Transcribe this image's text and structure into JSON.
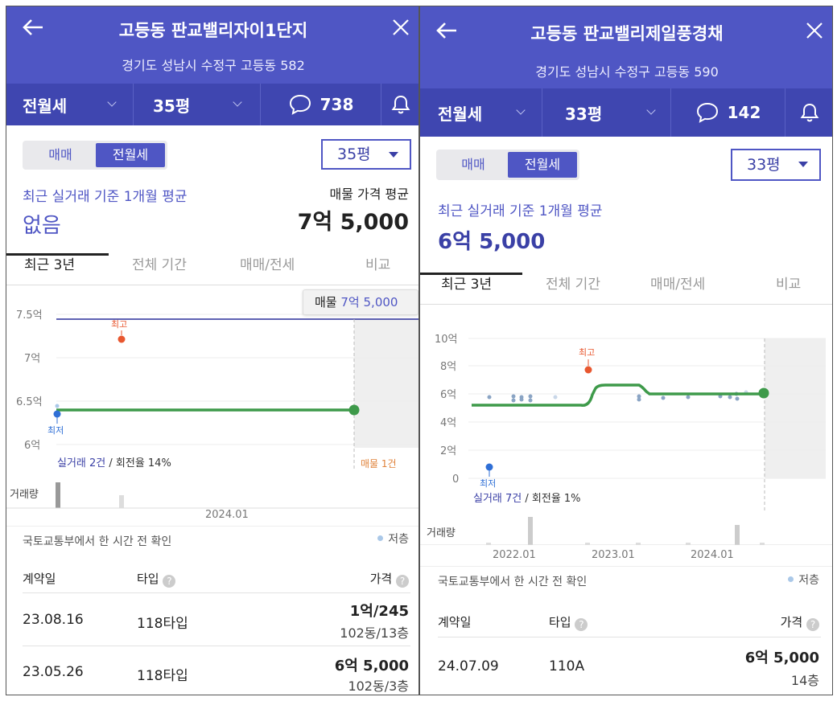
{
  "left": {
    "title": "고등동 판교밸리자이1단지",
    "address": "경기도 성남시 수정구 고등동 582",
    "filter": {
      "deal_type": "전월세",
      "size": "35평",
      "comment_count": "738"
    },
    "segment": {
      "sale": "매매",
      "rent": "전월세"
    },
    "size_select": "35평",
    "recent_label": "최근 실거래 기준 1개월 평균",
    "recent_value": "없음",
    "listing_label": "매물 가격 평균",
    "listing_value": "7억 5,000",
    "tabs": [
      "최근 3년",
      "전체 기간",
      "매매/전세",
      "비교"
    ],
    "tooltip": {
      "label": "매물",
      "value": "7억 5,000"
    },
    "chart": {
      "y_ticks": [
        "7.5억",
        "7억",
        "6.5억",
        "6억"
      ],
      "high_label": "최고",
      "low_label": "최저",
      "stats_count": "실거래 2건",
      "stats_rate": " / 회전율 14%",
      "listing_count": "매물 1건",
      "volume_label": "거래량",
      "x_ticks": [
        "2024.01"
      ]
    },
    "source_note": "국토교통부에서 한 시간 전 확인",
    "legend_low_floor": "저층",
    "table": {
      "headers": [
        "계약일",
        "타입",
        "가격"
      ],
      "rows": [
        {
          "date": "23.08.16",
          "type": "118타입",
          "price": "1억/245",
          "detail": "102동/13층"
        },
        {
          "date": "23.05.26",
          "type": "118타입",
          "price": "6억 5,000",
          "detail": "102동/3층"
        }
      ]
    }
  },
  "right": {
    "title": "고등동 판교밸리제일풍경채",
    "address": "경기도 성남시 수정구 고등동 590",
    "filter": {
      "deal_type": "전월세",
      "size": "33평",
      "comment_count": "142"
    },
    "segment": {
      "sale": "매매",
      "rent": "전월세"
    },
    "size_select": "33평",
    "recent_label": "최근 실거래 기준 1개월 평균",
    "recent_value": "6억 5,000",
    "tabs": [
      "최근 3년",
      "전체 기간",
      "매매/전세",
      "비교"
    ],
    "chart": {
      "y_ticks": [
        "10억",
        "8억",
        "6억",
        "4억",
        "2억",
        "0"
      ],
      "high_label": "최고",
      "low_label": "최저",
      "stats_count": "실거래 7건",
      "stats_rate": " / 회전율 1%",
      "volume_label": "거래량",
      "x_ticks": [
        "2022.01",
        "2023.01",
        "2024.01"
      ]
    },
    "source_note": "국토교통부에서 한 시간 전 확인",
    "legend_low_floor": "저층",
    "table": {
      "headers": [
        "계약일",
        "타입",
        "가격"
      ],
      "rows": [
        {
          "date": "24.07.09",
          "type": "110A",
          "price": "6억 5,000",
          "detail": "14층"
        }
      ]
    }
  },
  "colors": {
    "brand": "#4f56c4",
    "trend": "#3e9a4a",
    "high": "#e8572f",
    "low": "#2f6fd6",
    "listing": "#e0823a"
  }
}
